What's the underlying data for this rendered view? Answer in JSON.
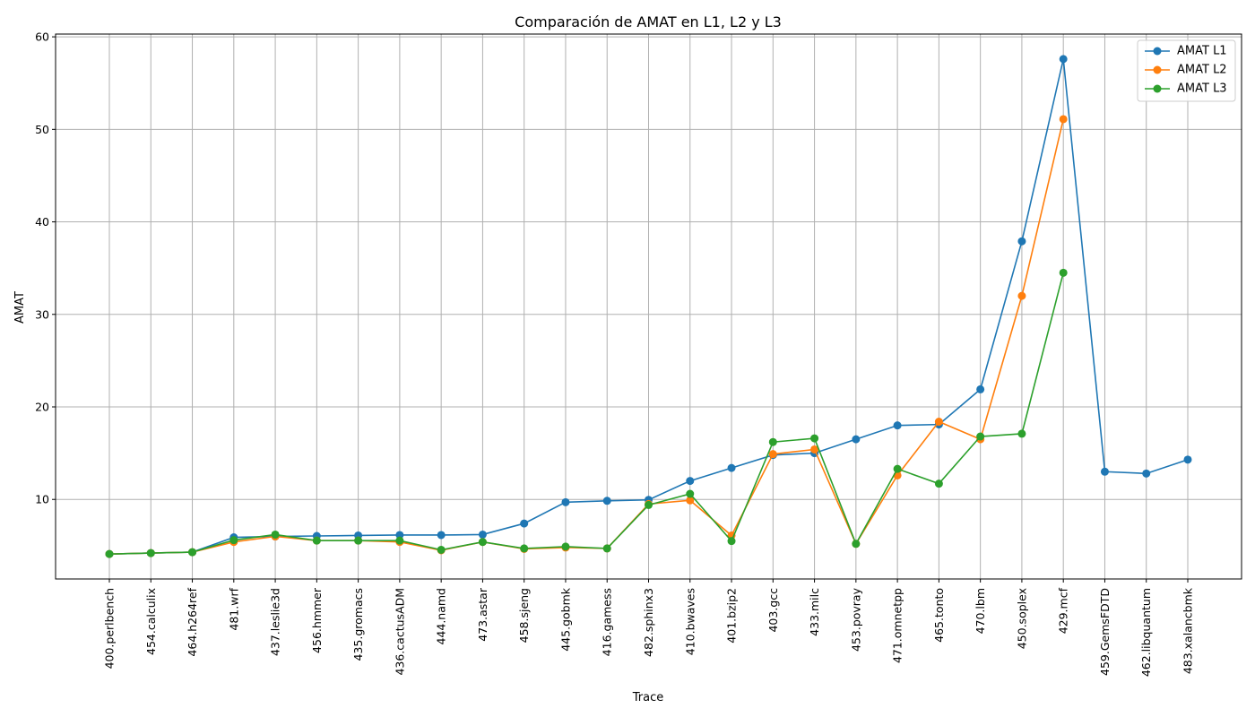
{
  "chart_data": {
    "type": "line",
    "title": "Comparación de AMAT en L1, L2 y L3",
    "xlabel": "Trace",
    "ylabel": "AMAT",
    "ylim": [
      1.4,
      60.3
    ],
    "yticks": [
      10,
      20,
      30,
      40,
      50,
      60
    ],
    "grid": true,
    "legend_position": "top-right",
    "categories": [
      "400.perlbench",
      "454.calculix",
      "464.h264ref",
      "481.wrf",
      "437.leslie3d",
      "456.hmmer",
      "435.gromacs",
      "436.cactusADM",
      "444.namd",
      "473.astar",
      "458.sjeng",
      "445.gobmk",
      "416.gamess",
      "482.sphinx3",
      "410.bwaves",
      "401.bzip2",
      "403.gcc",
      "433.milc",
      "453.povray",
      "471.omnetpp",
      "465.tonto",
      "470.lbm",
      "450.soplex",
      "429.mcf",
      "459.GemsFDTD",
      "462.libquantum",
      "483.xalancbmk"
    ],
    "series": [
      {
        "name": "AMAT L1",
        "color": "#1f77b4",
        "values": [
          4.1,
          4.2,
          4.3,
          5.9,
          6.0,
          6.05,
          6.1,
          6.15,
          6.15,
          6.2,
          7.4,
          9.7,
          9.85,
          9.95,
          12.0,
          13.4,
          14.8,
          15.0,
          16.5,
          18.0,
          18.1,
          21.9,
          37.9,
          57.6,
          13.0,
          12.8,
          14.3
        ]
      },
      {
        "name": "AMAT L2",
        "color": "#ff7f0e",
        "values": [
          4.1,
          4.2,
          4.3,
          5.4,
          6.0,
          5.55,
          5.55,
          5.4,
          4.5,
          5.4,
          4.65,
          4.8,
          4.7,
          9.5,
          9.9,
          6.1,
          14.9,
          15.4,
          5.2,
          12.6,
          18.4,
          16.5,
          32.0,
          51.1,
          null,
          null,
          null
        ]
      },
      {
        "name": "AMAT L3",
        "color": "#2ca02c",
        "values": [
          4.1,
          4.2,
          4.3,
          5.6,
          6.2,
          5.55,
          5.55,
          5.55,
          4.55,
          5.4,
          4.7,
          4.9,
          4.7,
          9.4,
          10.6,
          5.5,
          16.2,
          16.6,
          5.2,
          13.3,
          11.7,
          16.8,
          17.1,
          34.5,
          null,
          null,
          null
        ]
      }
    ]
  }
}
